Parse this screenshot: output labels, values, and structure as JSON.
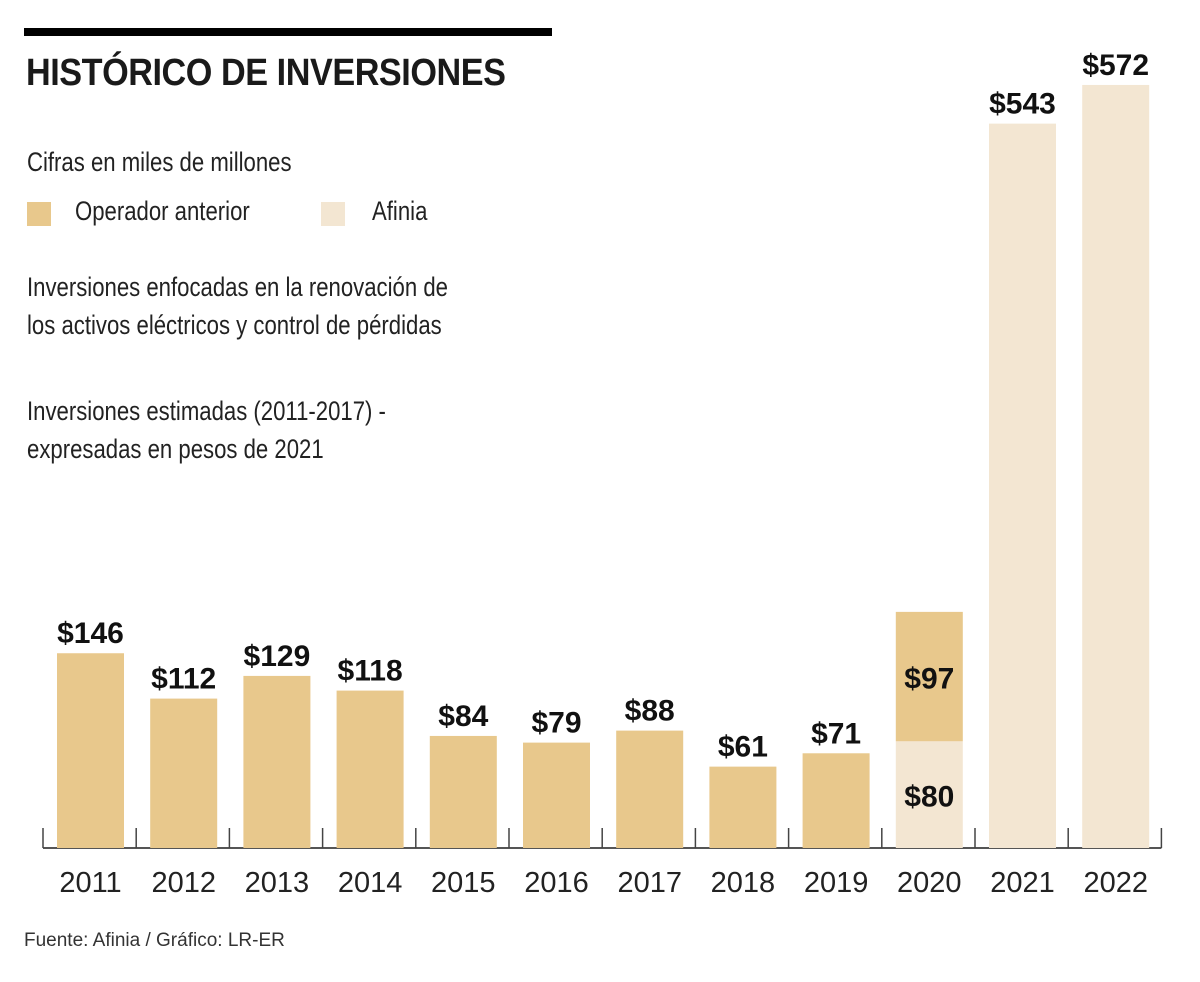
{
  "header": {
    "title": "HISTÓRICO DE INVERSIONES",
    "units_note": "Cifras en miles de millones",
    "note_1_line_1": "Inversiones enfocadas en la renovación de",
    "note_1_line_2": "los activos eléctricos y control de pérdidas",
    "note_2_line_1": "Inversiones estimadas (2011-2017) -",
    "note_2_line_2": "expresadas en pesos de 2021"
  },
  "legend": [
    {
      "label": "Operador anterior",
      "color": "#e8c88c"
    },
    {
      "label": "Afinia",
      "color": "#f3e6d2"
    }
  ],
  "footer": {
    "source": "Fuente: Afinia / Gráfico: LR-ER"
  },
  "chart_data": {
    "type": "bar",
    "stacked": true,
    "title": "HISTÓRICO DE INVERSIONES",
    "subtitle": "Cifras en miles de millones",
    "xlabel": "",
    "ylabel": "",
    "ylim": [
      0,
      600
    ],
    "grid": false,
    "legend_position": "top-left",
    "categories": [
      "2011",
      "2012",
      "2013",
      "2014",
      "2015",
      "2016",
      "2017",
      "2018",
      "2019",
      "2020",
      "2021",
      "2022"
    ],
    "series": [
      {
        "name": "Operador anterior",
        "color": "#e8c88c",
        "values": [
          146,
          112,
          129,
          118,
          84,
          79,
          88,
          61,
          71,
          97,
          0,
          0
        ],
        "labels": [
          "$146",
          "$112",
          "$129",
          "$118",
          "$84",
          "$79",
          "$88",
          "$61",
          "$71",
          "$97",
          "",
          ""
        ]
      },
      {
        "name": "Afinia",
        "color": "#f3e6d2",
        "values": [
          0,
          0,
          0,
          0,
          0,
          0,
          0,
          0,
          0,
          80,
          543,
          572
        ],
        "labels": [
          "",
          "",
          "",
          "",
          "",
          "",
          "",
          "",
          "",
          "$80",
          "$543",
          "$572"
        ]
      }
    ]
  }
}
